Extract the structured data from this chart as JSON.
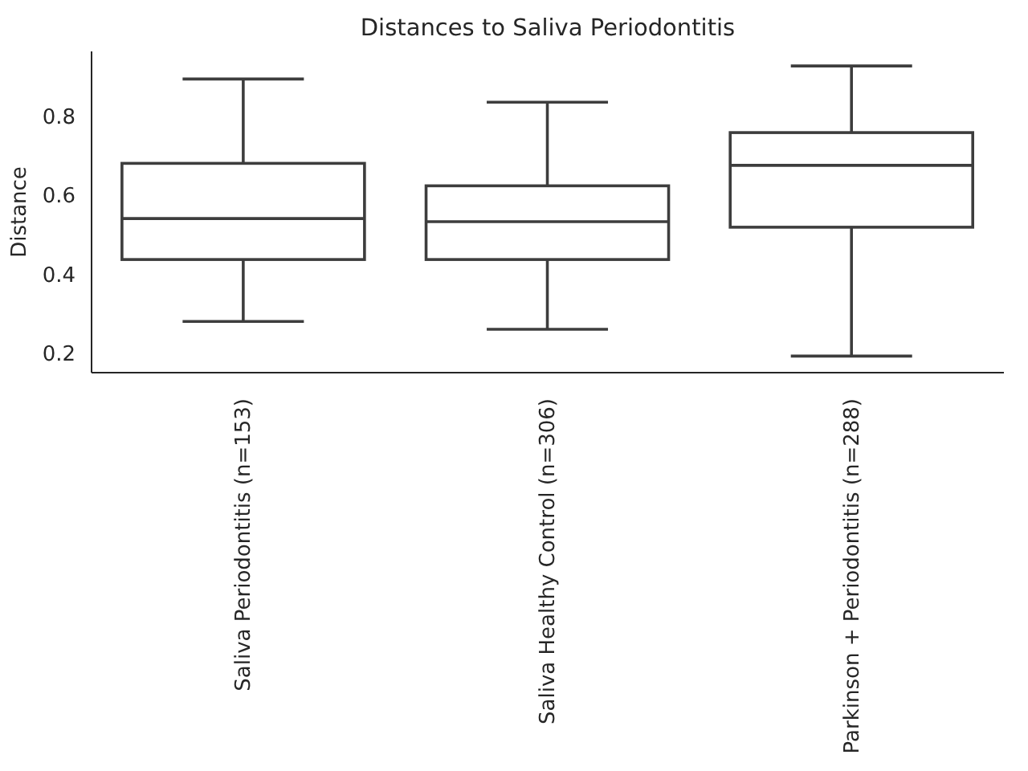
{
  "chart_data": {
    "type": "box",
    "title": "Distances to Saliva Periodontitis",
    "ylabel": "Distance",
    "categories": [
      "Saliva Periodontitis (n=153)",
      "Saliva Healthy Control (n=306)",
      "Parkinson + Periodontitis (n=288)"
    ],
    "boxes": [
      {
        "low": 0.28,
        "q1": 0.437,
        "median": 0.541,
        "q3": 0.681,
        "high": 0.895
      },
      {
        "low": 0.26,
        "q1": 0.437,
        "median": 0.533,
        "q3": 0.624,
        "high": 0.836
      },
      {
        "low": 0.192,
        "q1": 0.519,
        "median": 0.676,
        "q3": 0.759,
        "high": 0.928
      }
    ],
    "color": "#3d3d3d",
    "ylim": [
      0.15,
      0.965
    ],
    "yticks": [
      0.2,
      0.4,
      0.6,
      0.8
    ],
    "grid": false
  }
}
